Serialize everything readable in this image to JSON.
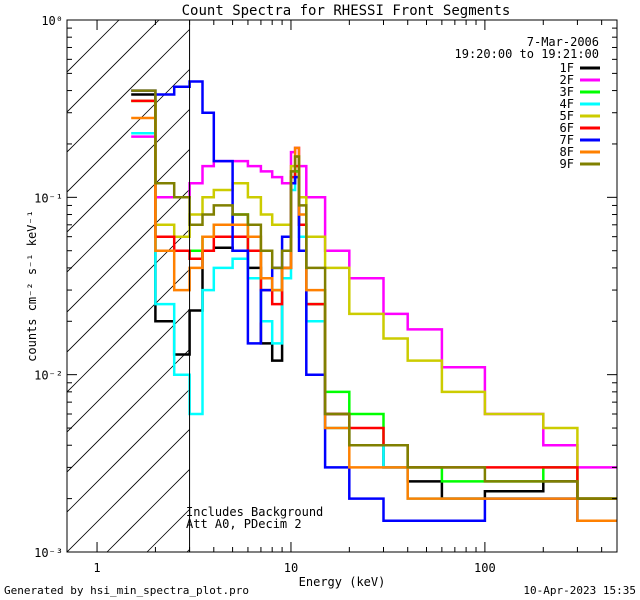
{
  "chart_data": {
    "type": "line",
    "title": "Count Spectra for RHESSI Front Segments",
    "xlabel": "Energy (keV)",
    "ylabel": "counts cm⁻² s⁻¹ keV⁻¹",
    "xlim": [
      0.7,
      480
    ],
    "ylim": [
      0.001,
      1
    ],
    "xscale": "log",
    "yscale": "log",
    "x_ticks": [
      "1",
      "10",
      "100"
    ],
    "y_ticks": [
      "10⁻³",
      "10⁻²",
      "10⁻¹",
      "10⁰"
    ],
    "date": "7-Mar-2006",
    "time_range": "19:20:00 to 19:21:00",
    "threshold_energy": 3.0,
    "annotation_lines": [
      "Includes Background",
      "Att A0, PDecim 2"
    ],
    "series": [
      {
        "name": "1F",
        "color": "#000000",
        "x": [
          1.5,
          2,
          2.5,
          3,
          3.5,
          4,
          5,
          6,
          7,
          8,
          9,
          10,
          10.5,
          11,
          12,
          15,
          20,
          30,
          40,
          60,
          100,
          200,
          300
        ],
        "y": [
          0.38,
          0.02,
          0.013,
          0.023,
          0.05,
          0.052,
          0.05,
          0.04,
          0.015,
          0.012,
          0.04,
          0.12,
          0.14,
          0.07,
          0.02,
          0.006,
          0.004,
          0.003,
          0.0025,
          0.002,
          0.0022,
          0.0025,
          0.002
        ]
      },
      {
        "name": "2F",
        "color": "#ff00ff",
        "x": [
          1.5,
          2,
          2.5,
          3,
          3.5,
          4,
          5,
          6,
          7,
          8,
          9,
          10,
          10.5,
          11,
          12,
          15,
          20,
          30,
          40,
          60,
          100,
          200,
          300
        ],
        "y": [
          0.22,
          0.1,
          0.1,
          0.12,
          0.15,
          0.16,
          0.16,
          0.15,
          0.14,
          0.13,
          0.12,
          0.18,
          0.19,
          0.15,
          0.1,
          0.05,
          0.035,
          0.022,
          0.018,
          0.011,
          0.006,
          0.004,
          0.003
        ]
      },
      {
        "name": "3F",
        "color": "#00ff00",
        "x": [
          1.5,
          2,
          2.5,
          3,
          3.5,
          4,
          5,
          6,
          7,
          8,
          9,
          10,
          10.5,
          11,
          12,
          15,
          20,
          30,
          40,
          60,
          100,
          200,
          300
        ],
        "y": [
          0.35,
          0.05,
          0.05,
          0.05,
          0.06,
          0.07,
          0.08,
          0.05,
          0.035,
          0.03,
          0.04,
          0.12,
          0.14,
          0.07,
          0.025,
          0.008,
          0.006,
          0.004,
          0.003,
          0.0025,
          0.0025,
          0.003,
          0.002
        ]
      },
      {
        "name": "4F",
        "color": "#00ffff",
        "x": [
          1.5,
          2,
          2.5,
          3,
          3.5,
          4,
          5,
          6,
          7,
          8,
          9,
          10,
          10.5,
          11,
          12,
          15,
          20,
          30,
          40,
          60,
          100,
          200,
          300
        ],
        "y": [
          0.23,
          0.025,
          0.01,
          0.006,
          0.03,
          0.04,
          0.045,
          0.035,
          0.02,
          0.015,
          0.035,
          0.11,
          0.13,
          0.06,
          0.02,
          0.005,
          0.004,
          0.003,
          0.002,
          0.002,
          0.002,
          0.002,
          0.0015
        ]
      },
      {
        "name": "5F",
        "color": "#cccc00",
        "x": [
          1.5,
          2,
          2.5,
          3,
          3.5,
          4,
          5,
          6,
          7,
          8,
          9,
          10,
          10.5,
          11,
          12,
          15,
          20,
          30,
          40,
          60,
          100,
          200,
          300
        ],
        "y": [
          0.35,
          0.07,
          0.06,
          0.08,
          0.1,
          0.11,
          0.12,
          0.1,
          0.08,
          0.07,
          0.07,
          0.15,
          0.17,
          0.1,
          0.06,
          0.04,
          0.022,
          0.016,
          0.012,
          0.008,
          0.006,
          0.005,
          0.002
        ]
      },
      {
        "name": "6F",
        "color": "#ff0000",
        "x": [
          1.5,
          2,
          2.5,
          3,
          3.5,
          4,
          5,
          6,
          7,
          8,
          9,
          10,
          10.5,
          11,
          12,
          15,
          20,
          30,
          40,
          60,
          100,
          200,
          300
        ],
        "y": [
          0.35,
          0.06,
          0.05,
          0.045,
          0.05,
          0.06,
          0.06,
          0.05,
          0.03,
          0.025,
          0.04,
          0.13,
          0.15,
          0.07,
          0.025,
          0.006,
          0.005,
          0.004,
          0.003,
          0.003,
          0.003,
          0.003,
          0.002
        ]
      },
      {
        "name": "7F",
        "color": "#0000ff",
        "x": [
          1.5,
          2,
          2.5,
          3,
          3.5,
          4,
          5,
          6,
          7,
          8,
          9,
          10,
          10.5,
          11,
          12,
          15,
          20,
          30,
          40,
          60,
          100,
          200,
          300
        ],
        "y": [
          0.4,
          0.38,
          0.42,
          0.45,
          0.3,
          0.16,
          0.05,
          0.015,
          0.03,
          0.04,
          0.06,
          0.12,
          0.13,
          0.05,
          0.01,
          0.003,
          0.002,
          0.0015,
          0.0015,
          0.0015,
          0.002,
          0.002,
          0.0015
        ]
      },
      {
        "name": "8F",
        "color": "#ff8000",
        "x": [
          1.5,
          2,
          2.5,
          3,
          3.5,
          4,
          5,
          6,
          7,
          8,
          9,
          10,
          10.5,
          11,
          12,
          15,
          20,
          30,
          40,
          60,
          100,
          200,
          300
        ],
        "y": [
          0.28,
          0.05,
          0.03,
          0.04,
          0.06,
          0.07,
          0.07,
          0.06,
          0.035,
          0.03,
          0.04,
          0.14,
          0.19,
          0.08,
          0.03,
          0.005,
          0.003,
          0.003,
          0.002,
          0.002,
          0.002,
          0.002,
          0.0015
        ]
      },
      {
        "name": "9F",
        "color": "#808000",
        "x": [
          1.5,
          2,
          2.5,
          3,
          3.5,
          4,
          5,
          6,
          7,
          8,
          9,
          10,
          10.5,
          11,
          12,
          15,
          20,
          30,
          40,
          60,
          100,
          200,
          300
        ],
        "y": [
          0.4,
          0.12,
          0.1,
          0.07,
          0.08,
          0.09,
          0.08,
          0.07,
          0.05,
          0.04,
          0.05,
          0.14,
          0.17,
          0.09,
          0.04,
          0.006,
          0.004,
          0.004,
          0.003,
          0.003,
          0.0025,
          0.0025,
          0.002
        ]
      }
    ]
  },
  "footer": {
    "generated_by": "Generated by hsi_min_spectra_plot.pro",
    "timestamp": "10-Apr-2023 15:35"
  }
}
